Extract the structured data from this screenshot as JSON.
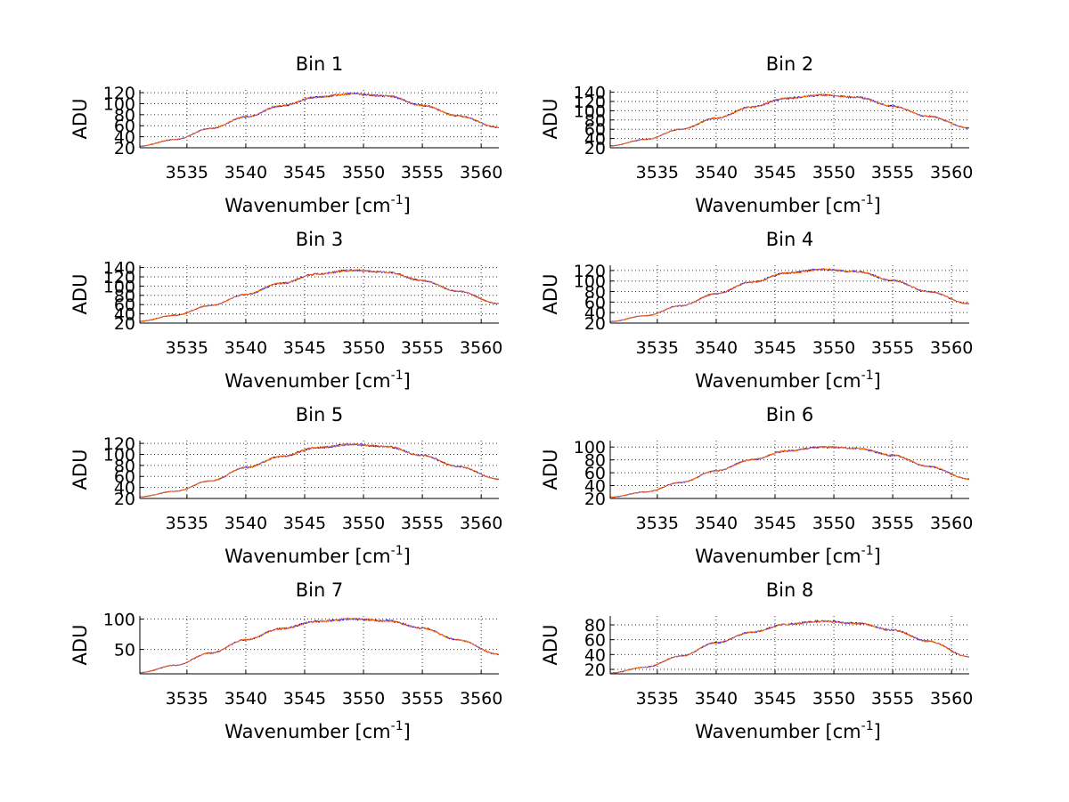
{
  "chart_data": [
    {
      "type": "line",
      "title": "Bin 1",
      "xlabel": "Wavenumber [cm",
      "xlabel_sup": "-1",
      "xlabel_end": "]",
      "ylabel": "ADU",
      "xlim": [
        3531,
        3561.5
      ],
      "ylim": [
        20,
        125
      ],
      "xticks": [
        3535,
        3540,
        3545,
        3550,
        3555,
        3560
      ],
      "yticks": [
        20,
        40,
        60,
        80,
        100,
        120
      ],
      "ytick_labels": [
        "20",
        "40",
        "60",
        "80",
        "100",
        "120"
      ],
      "grid": true,
      "series": [
        {
          "color": "#0000ff",
          "x": [
            3531,
            3534,
            3537,
            3540,
            3543,
            3546,
            3549,
            3552,
            3555,
            3558,
            3561.5
          ],
          "y": [
            23,
            35,
            55,
            76,
            96,
            112,
            118,
            114,
            97,
            78,
            57
          ]
        },
        {
          "color": "#ff6600",
          "x": [
            3531,
            3534,
            3537,
            3540,
            3543,
            3546,
            3549,
            3552,
            3555,
            3558,
            3561.5
          ],
          "y": [
            23,
            35,
            55,
            76,
            96,
            112,
            118,
            114,
            97,
            78,
            57
          ]
        }
      ]
    },
    {
      "type": "line",
      "title": "Bin 2",
      "xlabel": "Wavenumber [cm",
      "xlabel_sup": "-1",
      "xlabel_end": "]",
      "ylabel": "ADU",
      "xlim": [
        3531,
        3561.5
      ],
      "ylim": [
        20,
        145
      ],
      "xticks": [
        3535,
        3540,
        3545,
        3550,
        3555,
        3560
      ],
      "yticks": [
        20,
        40,
        60,
        80,
        100,
        120,
        140
      ],
      "ytick_labels": [
        "20",
        "40",
        "60",
        "80",
        "100",
        "120",
        "140"
      ],
      "grid": true,
      "series": [
        {
          "color": "#0000ff",
          "x": [
            3531,
            3534,
            3537,
            3540,
            3543,
            3546,
            3549,
            3552,
            3555,
            3558,
            3561.5
          ],
          "y": [
            24,
            38,
            60,
            84,
            108,
            127,
            134,
            129,
            110,
            88,
            63
          ]
        },
        {
          "color": "#ff6600",
          "x": [
            3531,
            3534,
            3537,
            3540,
            3543,
            3546,
            3549,
            3552,
            3555,
            3558,
            3561.5
          ],
          "y": [
            24,
            38,
            60,
            84,
            108,
            127,
            134,
            129,
            110,
            88,
            63
          ]
        }
      ]
    },
    {
      "type": "line",
      "title": "Bin 3",
      "xlabel": "Wavenumber [cm",
      "xlabel_sup": "-1",
      "xlabel_end": "]",
      "ylabel": "ADU",
      "xlim": [
        3531,
        3561.5
      ],
      "ylim": [
        20,
        145
      ],
      "xticks": [
        3535,
        3540,
        3545,
        3550,
        3555,
        3560
      ],
      "yticks": [
        20,
        40,
        60,
        80,
        100,
        120,
        140
      ],
      "ytick_labels": [
        "20",
        "40",
        "60",
        "80",
        "100",
        "120",
        "140"
      ],
      "grid": true,
      "series": [
        {
          "color": "#0000ff",
          "x": [
            3531,
            3534,
            3537,
            3540,
            3543,
            3546,
            3549,
            3552,
            3555,
            3558,
            3561.5
          ],
          "y": [
            24,
            37,
            58,
            82,
            106,
            126,
            134,
            130,
            112,
            89,
            62
          ]
        },
        {
          "color": "#ff6600",
          "x": [
            3531,
            3534,
            3537,
            3540,
            3543,
            3546,
            3549,
            3552,
            3555,
            3558,
            3561.5
          ],
          "y": [
            24,
            37,
            58,
            82,
            106,
            126,
            134,
            130,
            112,
            89,
            62
          ]
        }
      ]
    },
    {
      "type": "line",
      "title": "Bin 4",
      "xlabel": "Wavenumber [cm",
      "xlabel_sup": "-1",
      "xlabel_end": "]",
      "ylabel": "ADU",
      "xlim": [
        3531,
        3561.5
      ],
      "ylim": [
        20,
        130
      ],
      "xticks": [
        3535,
        3540,
        3545,
        3550,
        3555,
        3560
      ],
      "yticks": [
        20,
        40,
        60,
        80,
        100,
        120
      ],
      "ytick_labels": [
        "20",
        "40",
        "60",
        "80",
        "100",
        "120"
      ],
      "grid": true,
      "series": [
        {
          "color": "#0000ff",
          "x": [
            3531,
            3534,
            3537,
            3540,
            3543,
            3546,
            3549,
            3552,
            3555,
            3558,
            3561.5
          ],
          "y": [
            23,
            34,
            53,
            76,
            98,
            115,
            122,
            118,
            101,
            80,
            57
          ]
        },
        {
          "color": "#ff6600",
          "x": [
            3531,
            3534,
            3537,
            3540,
            3543,
            3546,
            3549,
            3552,
            3555,
            3558,
            3561.5
          ],
          "y": [
            23,
            34,
            53,
            76,
            98,
            115,
            122,
            118,
            101,
            80,
            57
          ]
        }
      ]
    },
    {
      "type": "line",
      "title": "Bin 5",
      "xlabel": "Wavenumber [cm",
      "xlabel_sup": "-1",
      "xlabel_end": "]",
      "ylabel": "ADU",
      "xlim": [
        3531,
        3561.5
      ],
      "ylim": [
        20,
        125
      ],
      "xticks": [
        3535,
        3540,
        3545,
        3550,
        3555,
        3560
      ],
      "yticks": [
        20,
        40,
        60,
        80,
        100,
        120
      ],
      "ytick_labels": [
        "20",
        "40",
        "60",
        "80",
        "100",
        "120"
      ],
      "grid": true,
      "series": [
        {
          "color": "#0000ff",
          "x": [
            3531,
            3534,
            3537,
            3540,
            3543,
            3546,
            3549,
            3552,
            3555,
            3558,
            3561.5
          ],
          "y": [
            23,
            33,
            52,
            76,
            96,
            112,
            118,
            114,
            98,
            78,
            55
          ]
        },
        {
          "color": "#ff6600",
          "x": [
            3531,
            3534,
            3537,
            3540,
            3543,
            3546,
            3549,
            3552,
            3555,
            3558,
            3561.5
          ],
          "y": [
            23,
            33,
            52,
            76,
            96,
            112,
            118,
            114,
            98,
            78,
            55
          ]
        }
      ]
    },
    {
      "type": "line",
      "title": "Bin 6",
      "xlabel": "Wavenumber [cm",
      "xlabel_sup": "-1",
      "xlabel_end": "]",
      "ylabel": "ADU",
      "xlim": [
        3531,
        3561.5
      ],
      "ylim": [
        20,
        110
      ],
      "xticks": [
        3535,
        3540,
        3545,
        3550,
        3555,
        3560
      ],
      "yticks": [
        20,
        40,
        60,
        80,
        100
      ],
      "ytick_labels": [
        "20",
        "40",
        "60",
        "80",
        "100"
      ],
      "grid": true,
      "series": [
        {
          "color": "#0000ff",
          "x": [
            3531,
            3534,
            3537,
            3540,
            3543,
            3546,
            3549,
            3552,
            3555,
            3558,
            3561.5
          ],
          "y": [
            22,
            30,
            45,
            63,
            80,
            94,
            100,
            98,
            87,
            70,
            50
          ]
        },
        {
          "color": "#ff6600",
          "x": [
            3531,
            3534,
            3537,
            3540,
            3543,
            3546,
            3549,
            3552,
            3555,
            3558,
            3561.5
          ],
          "y": [
            22,
            30,
            45,
            63,
            80,
            94,
            100,
            98,
            87,
            70,
            50
          ]
        }
      ]
    },
    {
      "type": "line",
      "title": "Bin 7",
      "xlabel": "Wavenumber [cm",
      "xlabel_sup": "-1",
      "xlabel_end": "]",
      "ylabel": "ADU",
      "xlim": [
        3531,
        3561.5
      ],
      "ylim": [
        10,
        105
      ],
      "xticks": [
        3535,
        3540,
        3545,
        3550,
        3555,
        3560
      ],
      "yticks": [
        50,
        100
      ],
      "ytick_labels": [
        "50",
        "100"
      ],
      "grid": true,
      "series": [
        {
          "color": "#0000ff",
          "x": [
            3531,
            3534,
            3537,
            3540,
            3543,
            3546,
            3549,
            3552,
            3555,
            3558,
            3561.5
          ],
          "y": [
            12,
            24,
            44,
            66,
            84,
            96,
            100,
            97,
            85,
            66,
            42
          ]
        },
        {
          "color": "#ff6600",
          "x": [
            3531,
            3534,
            3537,
            3540,
            3543,
            3546,
            3549,
            3552,
            3555,
            3558,
            3561.5
          ],
          "y": [
            12,
            24,
            44,
            66,
            84,
            96,
            100,
            97,
            85,
            66,
            42
          ]
        }
      ]
    },
    {
      "type": "line",
      "title": "Bin 8",
      "xlabel": "Wavenumber [cm",
      "xlabel_sup": "-1",
      "xlabel_end": "]",
      "ylabel": "ADU",
      "xlim": [
        3531,
        3561.5
      ],
      "ylim": [
        14,
        92
      ],
      "xticks": [
        3535,
        3540,
        3545,
        3550,
        3555,
        3560
      ],
      "yticks": [
        20,
        40,
        60,
        80
      ],
      "ytick_labels": [
        "20",
        "40",
        "60",
        "80"
      ],
      "grid": true,
      "series": [
        {
          "color": "#0000ff",
          "x": [
            3531,
            3534,
            3537,
            3540,
            3543,
            3546,
            3549,
            3552,
            3555,
            3558,
            3561.5
          ],
          "y": [
            15,
            23,
            38,
            56,
            70,
            81,
            85,
            82,
            73,
            58,
            37
          ]
        },
        {
          "color": "#ff6600",
          "x": [
            3531,
            3534,
            3537,
            3540,
            3543,
            3546,
            3549,
            3552,
            3555,
            3558,
            3561.5
          ],
          "y": [
            15,
            23,
            38,
            56,
            70,
            81,
            85,
            82,
            73,
            58,
            37
          ]
        }
      ]
    }
  ]
}
